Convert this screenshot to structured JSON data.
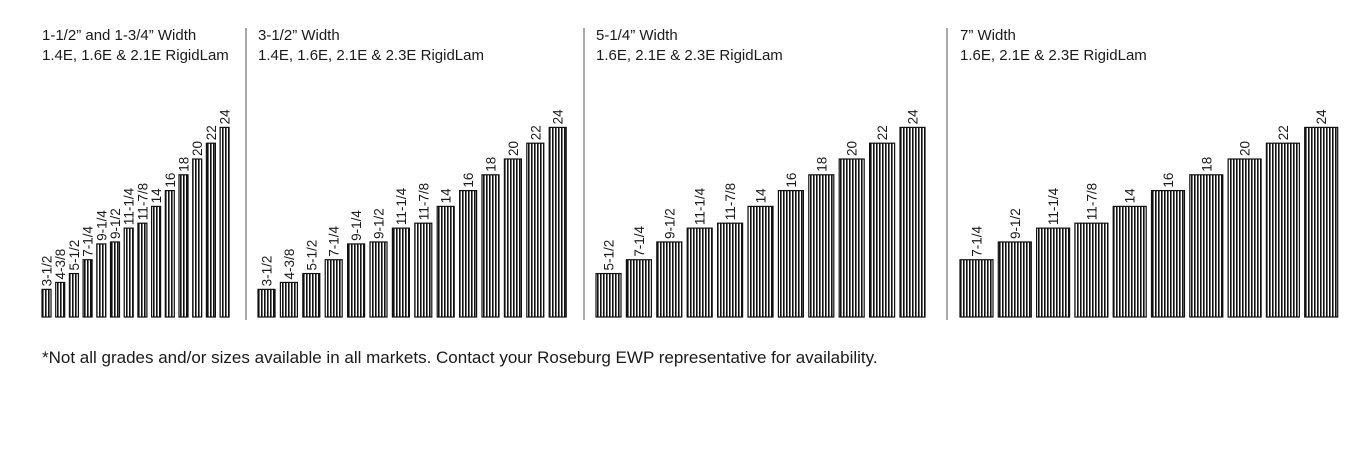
{
  "panels": [
    {
      "title_line1": "1-1/2” and 1-3/4” Width",
      "title_line2": "1.4E, 1.6E & 2.1E RigidLam",
      "depths": [
        "3-1/2",
        "4-3/8",
        "5-1/2",
        "7-1/4",
        "9-1/4",
        "9-1/2",
        "11-1/4",
        "11-7/8",
        "14",
        "16",
        "18",
        "20",
        "22",
        "24"
      ],
      "values": [
        3.5,
        4.375,
        5.5,
        7.25,
        9.25,
        9.5,
        11.25,
        11.875,
        14,
        16,
        18,
        20,
        22,
        24
      ]
    },
    {
      "title_line1": "3-1/2” Width",
      "title_line2": "1.4E, 1.6E, 2.1E & 2.3E RigidLam",
      "depths": [
        "3-1/2",
        "4-3/8",
        "5-1/2",
        "7-1/4",
        "9-1/4",
        "9-1/2",
        "11-1/4",
        "11-7/8",
        "14",
        "16",
        "18",
        "20",
        "22",
        "24"
      ],
      "values": [
        3.5,
        4.375,
        5.5,
        7.25,
        9.25,
        9.5,
        11.25,
        11.875,
        14,
        16,
        18,
        20,
        22,
        24
      ]
    },
    {
      "title_line1": "5-1/4” Width",
      "title_line2": "1.6E, 2.1E & 2.3E RigidLam",
      "depths": [
        "5-1/2",
        "7-1/4",
        "9-1/2",
        "11-1/4",
        "11-7/8",
        "14",
        "16",
        "18",
        "20",
        "22",
        "24"
      ],
      "values": [
        5.5,
        7.25,
        9.5,
        11.25,
        11.875,
        14,
        16,
        18,
        20,
        22,
        24
      ]
    },
    {
      "title_line1": "7” Width",
      "title_line2": "1.6E, 2.1E & 2.3E RigidLam",
      "depths": [
        "7-1/4",
        "9-1/2",
        "11-1/4",
        "11-7/8",
        "14",
        "16",
        "18",
        "20",
        "22",
        "24"
      ],
      "values": [
        7.25,
        9.5,
        11.25,
        11.875,
        14,
        16,
        18,
        20,
        22,
        24
      ]
    }
  ],
  "footnote": "*Not all grades and/or sizes available in all markets. Contact your Roseburg EWP representative for availability."
}
